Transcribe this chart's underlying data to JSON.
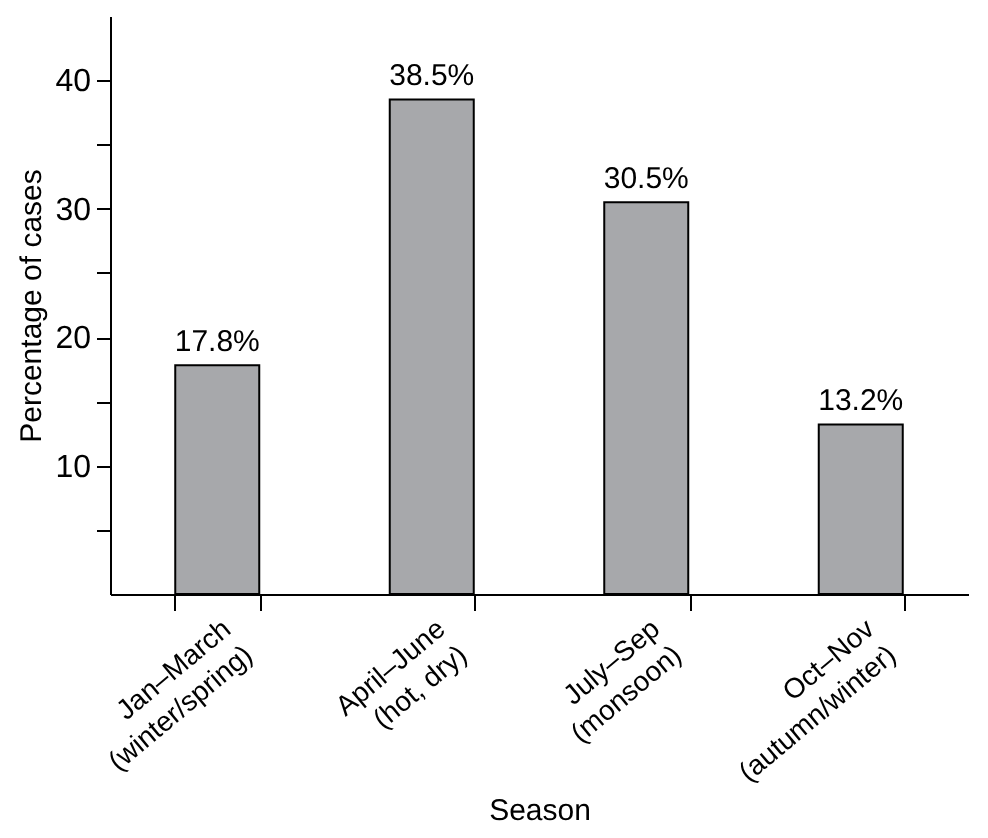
{
  "chart_data": {
    "type": "bar",
    "xlabel": "Season",
    "ylabel": "Percentage of cases",
    "categories": [
      "Jan–March\n(winter/spring)",
      "April–June\n(hot, dry)",
      "July–Sep\n(monsoon)",
      "Oct–Nov\n(autumn/winter)"
    ],
    "values": [
      17.8,
      38.5,
      30.5,
      13.2
    ],
    "value_labels": [
      "17.8%",
      "38.5%",
      "30.5%",
      "13.2%"
    ],
    "color": "#a7a8ab",
    "ylim": [
      0,
      45
    ],
    "yticks": [
      {
        "value": 5,
        "label": null
      },
      10,
      {
        "value": 15,
        "label": null
      },
      20,
      {
        "value": 25,
        "label": null
      },
      30,
      {
        "value": 35,
        "label": null
      },
      40
    ],
    "grid": false
  }
}
